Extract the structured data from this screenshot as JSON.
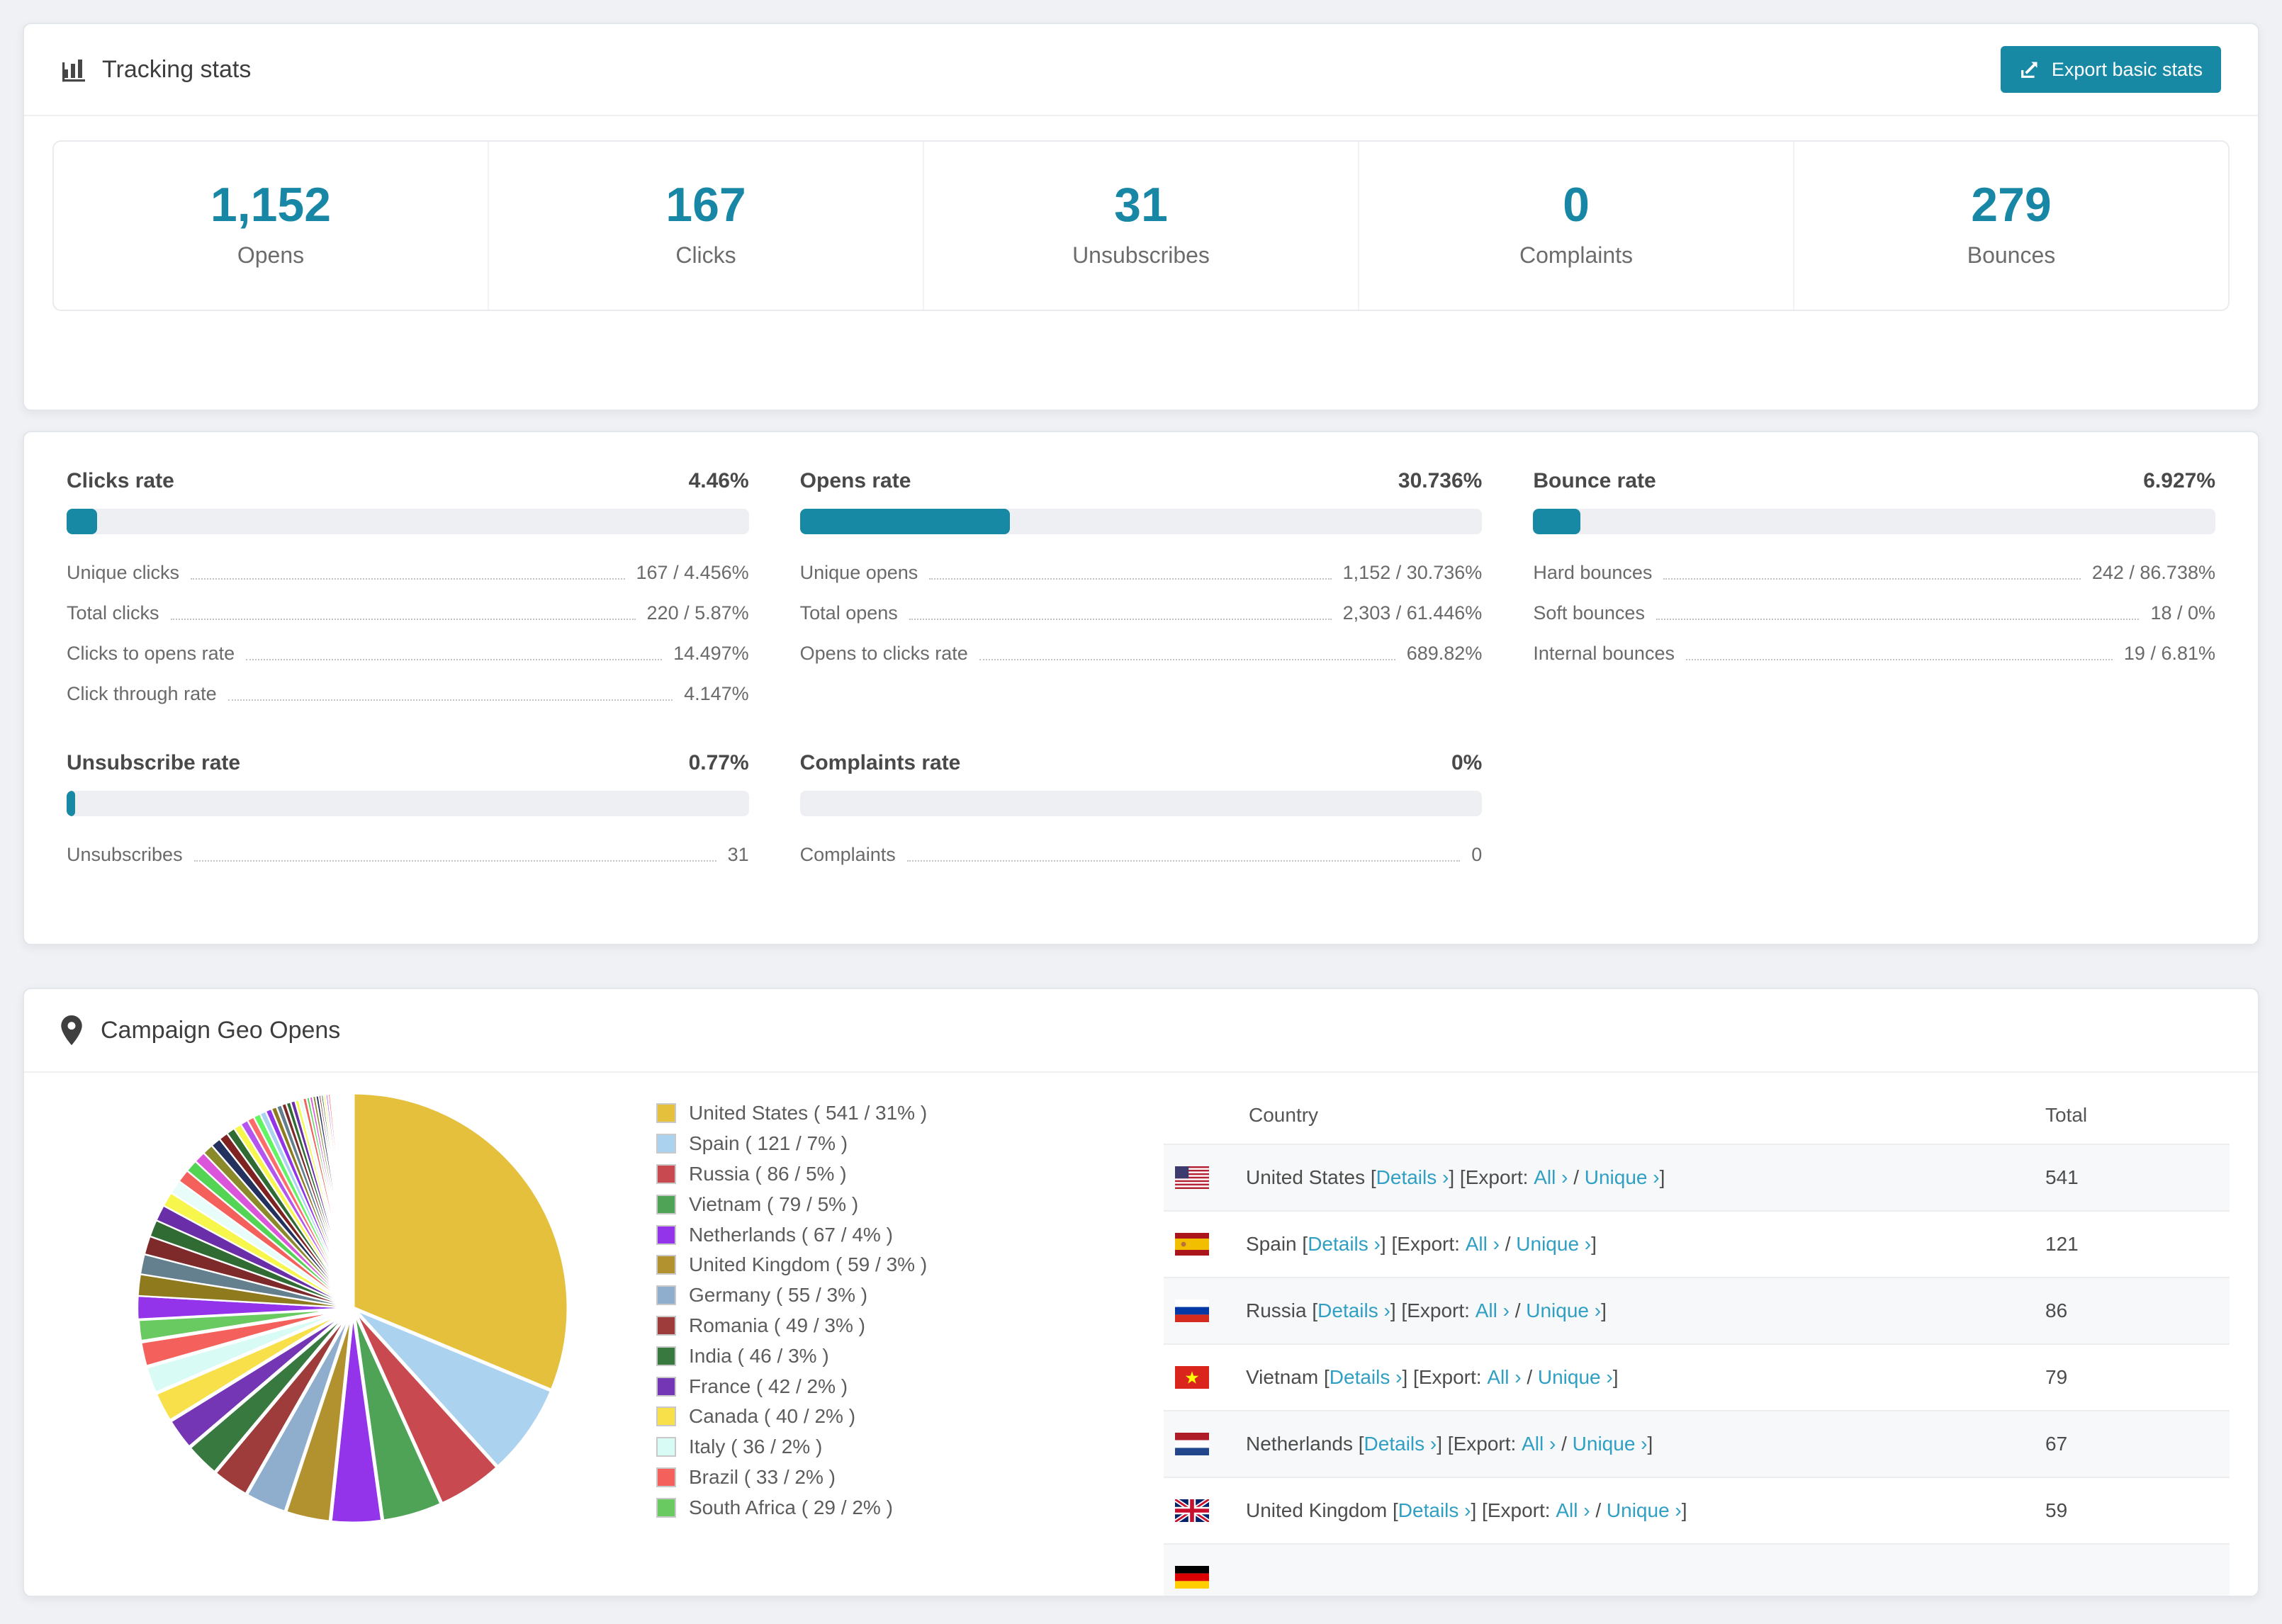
{
  "colors": {
    "accent": "#1789a4",
    "link": "#2f9fc4",
    "stat_number": "#1787a5"
  },
  "tracking_stats": {
    "title": "Tracking stats",
    "export_button": "Export basic stats",
    "stats": [
      {
        "value": "1,152",
        "label": "Opens"
      },
      {
        "value": "167",
        "label": "Clicks"
      },
      {
        "value": "31",
        "label": "Unsubscribes"
      },
      {
        "value": "0",
        "label": "Complaints"
      },
      {
        "value": "279",
        "label": "Bounces"
      }
    ]
  },
  "rates": {
    "blocks": [
      {
        "slug": "clicks",
        "title": "Clicks rate",
        "value": "4.46%",
        "percent": 4.46,
        "rows": [
          {
            "label": "Unique clicks",
            "value": "167 / 4.456%"
          },
          {
            "label": "Total clicks",
            "value": "220 / 5.87%"
          },
          {
            "label": "Clicks to opens rate",
            "value": "14.497%"
          },
          {
            "label": "Click through rate",
            "value": "4.147%"
          }
        ]
      },
      {
        "slug": "opens",
        "title": "Opens rate",
        "value": "30.736%",
        "percent": 30.736,
        "rows": [
          {
            "label": "Unique opens",
            "value": "1,152 / 30.736%"
          },
          {
            "label": "Total opens",
            "value": "2,303 / 61.446%"
          },
          {
            "label": "Opens to clicks rate",
            "value": "689.82%"
          }
        ]
      },
      {
        "slug": "bounce",
        "title": "Bounce rate",
        "value": "6.927%",
        "percent": 6.927,
        "rows": [
          {
            "label": "Hard bounces",
            "value": "242 / 86.738%"
          },
          {
            "label": "Soft bounces",
            "value": "18 / 0%"
          },
          {
            "label": "Internal bounces",
            "value": "19 / 6.81%"
          }
        ]
      },
      {
        "slug": "unsubscribe",
        "title": "Unsubscribe rate",
        "value": "0.77%",
        "percent": 0.77,
        "rows": [
          {
            "label": "Unsubscribes",
            "value": "31"
          }
        ]
      },
      {
        "slug": "complaints",
        "title": "Complaints rate",
        "value": "0%",
        "percent": 0,
        "rows": [
          {
            "label": "Complaints",
            "value": "0"
          }
        ]
      }
    ]
  },
  "geo": {
    "title": "Campaign Geo Opens",
    "table": {
      "columns": [
        "Country",
        "Total"
      ],
      "link_labels": {
        "details": "Details ›",
        "export_prefix": "Export:",
        "all": "All ›",
        "unique": "Unique ›"
      },
      "rows": [
        {
          "country": "United States",
          "flag": "us",
          "total": "541"
        },
        {
          "country": "Spain",
          "flag": "es",
          "total": "121"
        },
        {
          "country": "Russia",
          "flag": "ru",
          "total": "86"
        },
        {
          "country": "Vietnam",
          "flag": "vn",
          "total": "79"
        },
        {
          "country": "Netherlands",
          "flag": "nl",
          "total": "67"
        },
        {
          "country": "United Kingdom",
          "flag": "gb",
          "total": "59"
        },
        {
          "country": "",
          "flag": "de",
          "total": ""
        }
      ]
    }
  },
  "chart_data": {
    "type": "pie",
    "title": "Campaign Geo Opens",
    "legend_position": "right",
    "legend_format": "{label} ( {value} / {percent}% )",
    "labels": [
      "United States",
      "Spain",
      "Russia",
      "Vietnam",
      "Netherlands",
      "United Kingdom",
      "Germany",
      "Romania",
      "India",
      "France",
      "Canada",
      "Italy",
      "Brazil",
      "South Africa"
    ],
    "values": [
      541,
      121,
      86,
      79,
      67,
      59,
      55,
      49,
      46,
      42,
      40,
      36,
      33,
      29
    ],
    "percents": [
      31,
      7,
      5,
      5,
      4,
      3,
      3,
      3,
      3,
      2,
      2,
      2,
      2,
      2
    ],
    "colors": [
      "#e5c03c",
      "#abd3f0",
      "#c8494f",
      "#4ea356",
      "#9333ea",
      "#b2912f",
      "#8fadcd",
      "#9e3b3b",
      "#38793f",
      "#7436b4",
      "#f8e04b",
      "#d8fbf6",
      "#f4615c",
      "#69ca62"
    ],
    "others": {
      "note": "long tail of unlabeled small country slices, values estimated from pixels",
      "values": [
        30,
        28,
        26,
        24,
        22,
        21,
        19,
        18,
        17,
        16,
        15,
        14,
        13,
        12,
        11,
        10,
        10,
        9,
        9,
        8,
        8,
        7,
        7,
        6,
        6,
        6,
        5,
        5,
        5,
        4,
        4,
        4,
        4,
        3,
        3,
        3,
        3,
        3,
        2,
        2,
        2,
        2,
        2,
        2,
        2,
        1,
        1,
        1,
        1,
        1,
        1,
        1,
        1,
        1,
        1,
        1,
        1,
        1,
        1,
        1
      ]
    }
  }
}
